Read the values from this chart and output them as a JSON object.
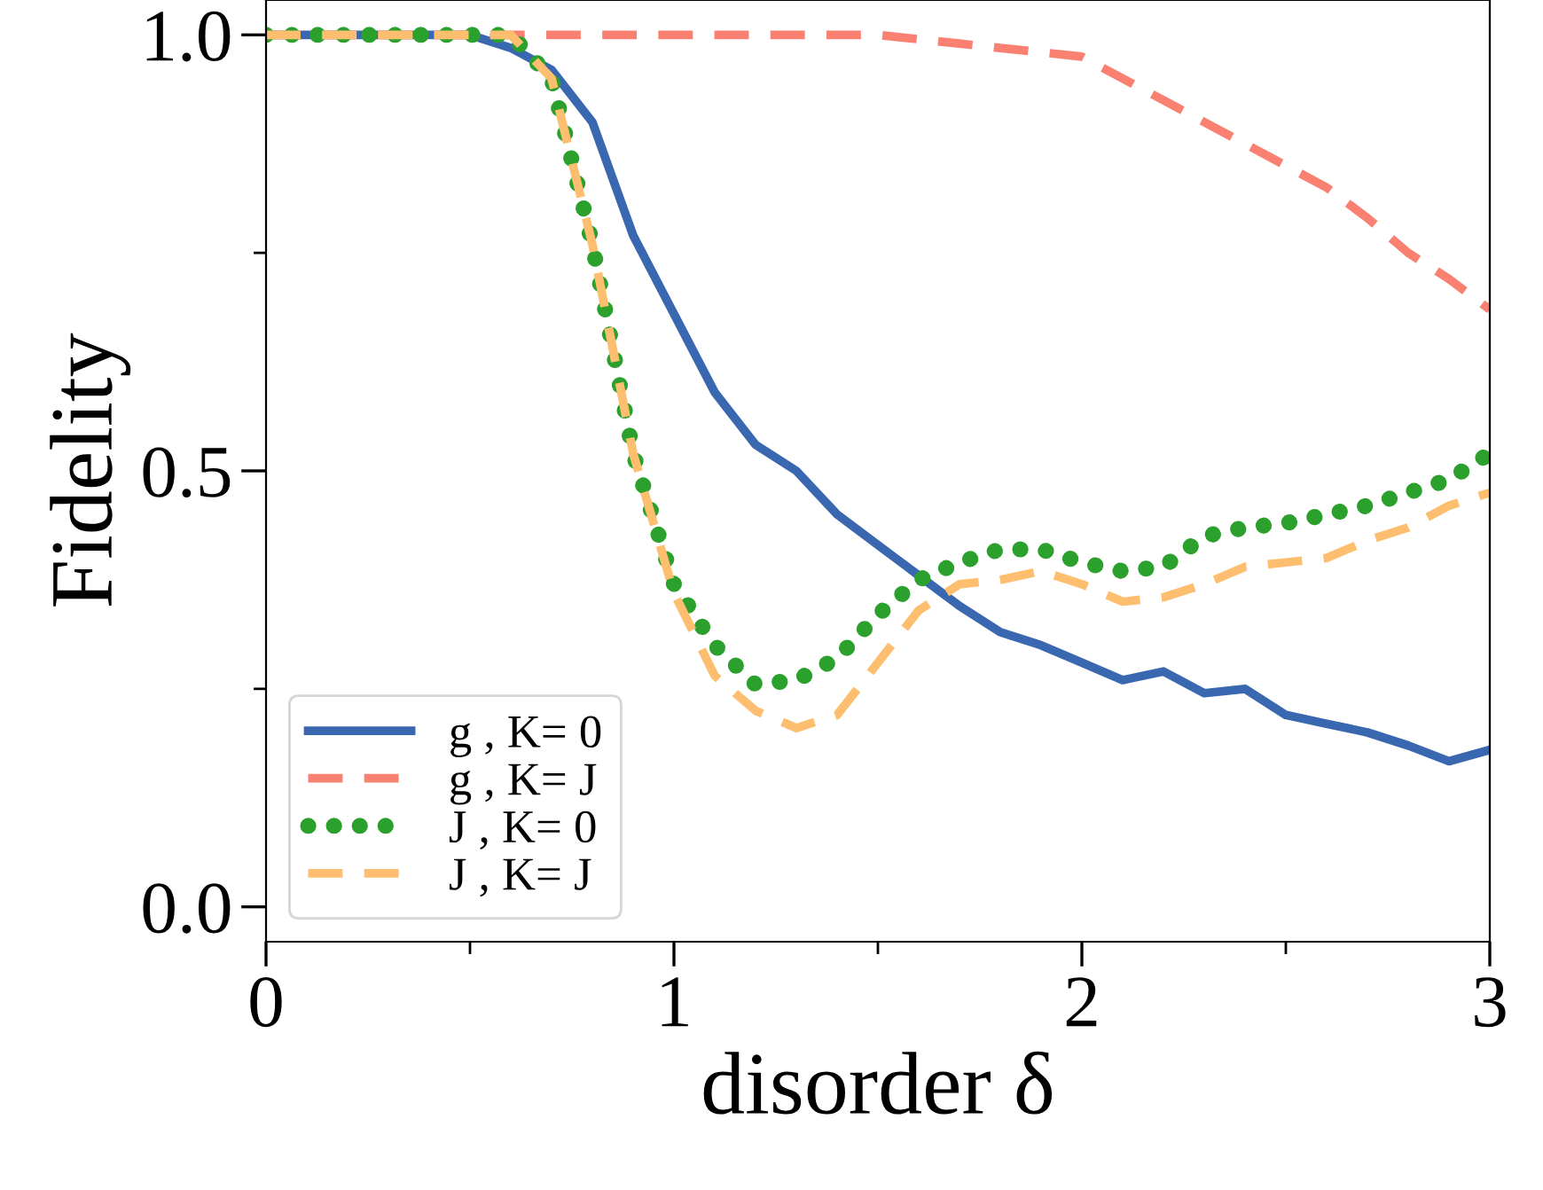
{
  "chart_data": {
    "type": "line",
    "xlabel": "disorder δ",
    "ylabel": "Fidelity",
    "x": [
      0,
      0.1,
      0.2,
      0.3,
      0.4,
      0.5,
      0.6,
      0.7,
      0.8,
      0.9,
      1.0,
      1.1,
      1.2,
      1.3,
      1.4,
      1.5,
      1.6,
      1.7,
      1.8,
      1.9,
      2.0,
      2.1,
      2.2,
      2.3,
      2.4,
      2.5,
      2.6,
      2.7,
      2.8,
      2.9,
      3.0
    ],
    "series": [
      {
        "name": "g , K= 0",
        "color": "#3a68b0",
        "line_style": "solid",
        "values": [
          1.0,
          1.0,
          1.0,
          1.0,
          1.0,
          1.0,
          0.985,
          0.96,
          0.9,
          0.77,
          0.68,
          0.59,
          0.53,
          0.5,
          0.45,
          0.415,
          0.38,
          0.345,
          0.315,
          0.3,
          0.28,
          0.26,
          0.27,
          0.245,
          0.25,
          0.22,
          0.21,
          0.2,
          0.185,
          0.167,
          0.18
        ]
      },
      {
        "name": "g , K= J",
        "color": "#fa8072",
        "line_style": "dashed",
        "values": [
          1.0,
          1.0,
          1.0,
          1.0,
          1.0,
          1.0,
          1.0,
          1.0,
          1.0,
          1.0,
          1.0,
          1.0,
          1.0,
          1.0,
          1.0,
          1.0,
          0.995,
          0.99,
          0.985,
          0.98,
          0.975,
          0.95,
          0.925,
          0.9,
          0.875,
          0.85,
          0.825,
          0.79,
          0.75,
          0.72,
          0.685
        ]
      },
      {
        "name": "J , K= 0",
        "color": "#2ca02c",
        "line_style": "dotted",
        "values": [
          1.0,
          1.0,
          1.0,
          1.0,
          1.0,
          1.0,
          1.0,
          0.95,
          0.76,
          0.52,
          0.37,
          0.3,
          0.255,
          0.26,
          0.285,
          0.335,
          0.375,
          0.395,
          0.41,
          0.41,
          0.395,
          0.385,
          0.39,
          0.425,
          0.435,
          0.44,
          0.45,
          0.46,
          0.475,
          0.49,
          0.52
        ]
      },
      {
        "name": "J , K= J",
        "color": "#fdbf6f",
        "line_style": "dashed",
        "values": [
          1.0,
          1.0,
          1.0,
          1.0,
          1.0,
          1.0,
          1.0,
          0.95,
          0.76,
          0.52,
          0.36,
          0.265,
          0.225,
          0.205,
          0.22,
          0.28,
          0.34,
          0.37,
          0.375,
          0.385,
          0.37,
          0.35,
          0.355,
          0.37,
          0.39,
          0.395,
          0.4,
          0.42,
          0.435,
          0.46,
          0.475
        ]
      }
    ],
    "xlim": [
      0,
      3
    ],
    "xticks": [
      0,
      {
        "value": 0.5,
        "label": null
      },
      1,
      {
        "value": 1.5,
        "label": null
      },
      2,
      {
        "value": 2.5,
        "label": null
      },
      3
    ],
    "ylim": [
      -0.04,
      1.04
    ],
    "yticks": [
      {
        "value": 0,
        "label": "0.0"
      },
      {
        "value": 0.25,
        "label": null
      },
      0.5,
      {
        "value": 0.75,
        "label": null
      },
      {
        "value": 1,
        "label": "1.0"
      }
    ],
    "grid": false,
    "legend": "lower left"
  }
}
